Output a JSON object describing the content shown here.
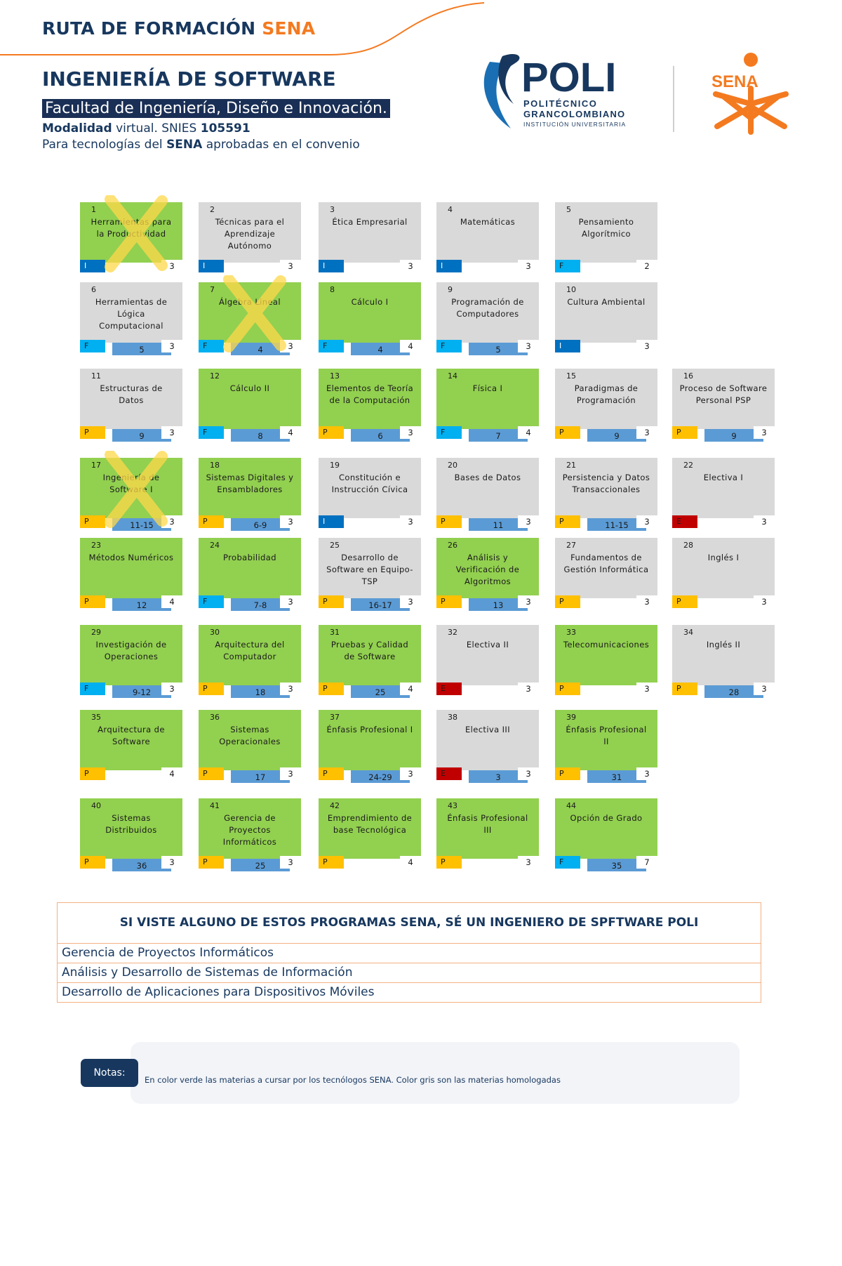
{
  "header": {
    "title_main": "RUTA DE FORMACIÓN",
    "title_accent": "SENA",
    "program": "INGENIERÍA DE SOFTWARE",
    "faculty": "Facultad de Ingeniería, Diseño e Innovación.",
    "modality_label": "Modalidad",
    "modality_value": " virtual. SNIES ",
    "snies": "105591",
    "tech_pre": "Para tecnologías del ",
    "tech_bold": "SENA",
    "tech_post": " aprobadas en el convenio"
  },
  "logos": {
    "poli_word": "POLI",
    "poli_line1": "POLITÉCNICO",
    "poli_line2": "GRANCOLOMBIANO",
    "poli_line3": "INSTITUCIÓN UNIVERSITARIA",
    "sena_word": "SENA",
    "colors": {
      "poli_navy": "#17375e",
      "poli_blue": "#1a6fb4",
      "sena_orange": "#f47a20"
    }
  },
  "legend_colors": {
    "green": "#92d050",
    "gray": "#d9d9d9",
    "I": "#0070c0",
    "F": "#00b0f0",
    "P": "#ffc000",
    "E": "#c00000",
    "prereq": "#5b9bd5"
  },
  "courses": [
    {
      "n": "1",
      "name": "Herramientas para la Productividad",
      "tag": "I",
      "pre": "",
      "cr": "3",
      "color": "green",
      "crossed": true
    },
    {
      "n": "2",
      "name": "Técnicas para el Aprendizaje Autónomo",
      "tag": "I",
      "pre": "",
      "cr": "3",
      "color": "gray",
      "crossed": false
    },
    {
      "n": "3",
      "name": "Ética Empresarial",
      "tag": "I",
      "pre": "",
      "cr": "3",
      "color": "gray",
      "crossed": false
    },
    {
      "n": "4",
      "name": "Matemáticas",
      "tag": "I",
      "pre": "",
      "cr": "3",
      "color": "gray",
      "crossed": false
    },
    {
      "n": "5",
      "name": "Pensamiento Algorítmico",
      "tag": "F",
      "pre": "",
      "cr": "2",
      "color": "gray",
      "crossed": false
    },
    {
      "n": "6",
      "name": "Herramientas de Lógica Computacional",
      "tag": "F",
      "pre": "5",
      "cr": "3",
      "color": "gray",
      "crossed": false
    },
    {
      "n": "7",
      "name": "Álgebra Lineal",
      "tag": "F",
      "pre": "4",
      "cr": "3",
      "color": "green",
      "crossed": true
    },
    {
      "n": "8",
      "name": "Cálculo I",
      "tag": "F",
      "pre": "4",
      "cr": "4",
      "color": "green",
      "crossed": false
    },
    {
      "n": "9",
      "name": "Programación de Computadores",
      "tag": "F",
      "pre": "5",
      "cr": "3",
      "color": "gray",
      "crossed": false
    },
    {
      "n": "10",
      "name": "Cultura Ambiental",
      "tag": "I",
      "pre": "",
      "cr": "3",
      "color": "gray",
      "crossed": false
    },
    {
      "n": "11",
      "name": "Estructuras de Datos",
      "tag": "P",
      "pre": "9",
      "cr": "3",
      "color": "gray",
      "crossed": false
    },
    {
      "n": "12",
      "name": "Cálculo II",
      "tag": "F",
      "pre": "8",
      "cr": "4",
      "color": "green",
      "crossed": false
    },
    {
      "n": "13",
      "name": "Elementos de Teoría de la Computación",
      "tag": "P",
      "pre": "6",
      "cr": "3",
      "color": "green",
      "crossed": false
    },
    {
      "n": "14",
      "name": "Física I",
      "tag": "F",
      "pre": "7",
      "cr": "4",
      "color": "green",
      "crossed": false
    },
    {
      "n": "15",
      "name": "Paradigmas de Programación",
      "tag": "P",
      "pre": "9",
      "cr": "3",
      "color": "gray",
      "crossed": false
    },
    {
      "n": "16",
      "name": "Proceso de Software Personal PSP",
      "tag": "P",
      "pre": "9",
      "cr": "3",
      "color": "gray",
      "crossed": false
    },
    {
      "n": "17",
      "name": "Ingeniería de Software I",
      "tag": "P",
      "pre": "11-15",
      "cr": "3",
      "color": "green",
      "crossed": true
    },
    {
      "n": "18",
      "name": "Sistemas Digitales y Ensambladores",
      "tag": "P",
      "pre": "6-9",
      "cr": "3",
      "color": "green",
      "crossed": false
    },
    {
      "n": "19",
      "name": "Constitución e Instrucción Cívica",
      "tag": "I",
      "pre": "",
      "cr": "3",
      "color": "gray",
      "crossed": false
    },
    {
      "n": "20",
      "name": "Bases de Datos",
      "tag": "P",
      "pre": "11",
      "cr": "3",
      "color": "gray",
      "crossed": false
    },
    {
      "n": "21",
      "name": "Persistencia y Datos Transaccionales",
      "tag": "P",
      "pre": "11-15",
      "cr": "3",
      "color": "gray",
      "crossed": false
    },
    {
      "n": "22",
      "name": "Electiva I",
      "tag": "E",
      "pre": "",
      "cr": "3",
      "color": "gray",
      "crossed": false
    },
    {
      "n": "23",
      "name": "Métodos Numéricos",
      "tag": "P",
      "pre": "12",
      "cr": "4",
      "color": "green",
      "crossed": false
    },
    {
      "n": "24",
      "name": "Probabilidad",
      "tag": "F",
      "pre": "7-8",
      "cr": "3",
      "color": "green",
      "crossed": false
    },
    {
      "n": "25",
      "name": "Desarrollo de Software en Equipo- TSP",
      "tag": "P",
      "pre": "16-17",
      "cr": "3",
      "color": "gray",
      "crossed": false
    },
    {
      "n": "26",
      "name": "Análisis y Verificación de Algoritmos",
      "tag": "P",
      "pre": "13",
      "cr": "3",
      "color": "green",
      "crossed": false
    },
    {
      "n": "27",
      "name": "Fundamentos de Gestión Informática",
      "tag": "P",
      "pre": "",
      "cr": "3",
      "color": "gray",
      "crossed": false
    },
    {
      "n": "28",
      "name": "Inglés I",
      "tag": "P",
      "pre": "",
      "cr": "3",
      "color": "gray",
      "crossed": false
    },
    {
      "n": "29",
      "name": "Investigación de Operaciones",
      "tag": "F",
      "pre": "9-12",
      "cr": "3",
      "color": "green",
      "crossed": false
    },
    {
      "n": "30",
      "name": "Arquitectura del Computador",
      "tag": "P",
      "pre": "18",
      "cr": "3",
      "color": "green",
      "crossed": false
    },
    {
      "n": "31",
      "name": "Pruebas y Calidad de Software",
      "tag": "P",
      "pre": "25",
      "cr": "4",
      "color": "green",
      "crossed": false
    },
    {
      "n": "32",
      "name": "Electiva II",
      "tag": "E",
      "pre": "",
      "cr": "3",
      "color": "gray",
      "crossed": false
    },
    {
      "n": "33",
      "name": "Telecomunicaciones",
      "tag": "P",
      "pre": "",
      "cr": "3",
      "color": "green",
      "crossed": false
    },
    {
      "n": "34",
      "name": "Inglés II",
      "tag": "P",
      "pre": "28",
      "cr": "3",
      "color": "gray",
      "crossed": false
    },
    {
      "n": "35",
      "name": "Arquitectura de Software",
      "tag": "P",
      "pre": "",
      "cr": "4",
      "color": "green",
      "crossed": false
    },
    {
      "n": "36",
      "name": "Sistemas Operacionales",
      "tag": "P",
      "pre": "17",
      "cr": "3",
      "color": "green",
      "crossed": false
    },
    {
      "n": "37",
      "name": "Énfasis Profesional I",
      "tag": "P",
      "pre": "24-29",
      "cr": "3",
      "color": "green",
      "crossed": false
    },
    {
      "n": "38",
      "name": "Electiva III",
      "tag": "E",
      "pre": "3",
      "cr": "3",
      "color": "gray",
      "crossed": false
    },
    {
      "n": "39",
      "name": "Énfasis Profesional II",
      "tag": "P",
      "pre": "31",
      "cr": "3",
      "color": "green",
      "crossed": false
    },
    {
      "n": "40",
      "name": "Sistemas Distribuidos",
      "tag": "P",
      "pre": "36",
      "cr": "3",
      "color": "green",
      "crossed": false
    },
    {
      "n": "41",
      "name": "Gerencia de Proyectos Informáticos",
      "tag": "P",
      "pre": "25",
      "cr": "3",
      "color": "green",
      "crossed": false
    },
    {
      "n": "42",
      "name": "Emprendimiento de base Tecnológica",
      "tag": "P",
      "pre": "",
      "cr": "4",
      "color": "green",
      "crossed": false
    },
    {
      "n": "43",
      "name": "Énfasis Profesional III",
      "tag": "P",
      "pre": "",
      "cr": "3",
      "color": "green",
      "crossed": false
    },
    {
      "n": "44",
      "name": "Opción de Grado",
      "tag": "F",
      "pre": "35",
      "cr": "7",
      "color": "green",
      "crossed": false
    }
  ],
  "sena_table": {
    "header": "SI VISTE ALGUNO DE ESTOS PROGRAMAS SENA, SÉ UN INGENIERO DE SPFTWARE POLI",
    "rows": [
      "Gerencia de Proyectos Informáticos",
      "Análisis y Desarrollo de Sistemas de Información",
      "Desarrollo de Aplicaciones para Dispositivos Móviles"
    ]
  },
  "notes": {
    "label": "Notas:",
    "text": "En color verde las materias a cursar por los tecnólogos SENA. Color gris son las materias homologadas"
  }
}
